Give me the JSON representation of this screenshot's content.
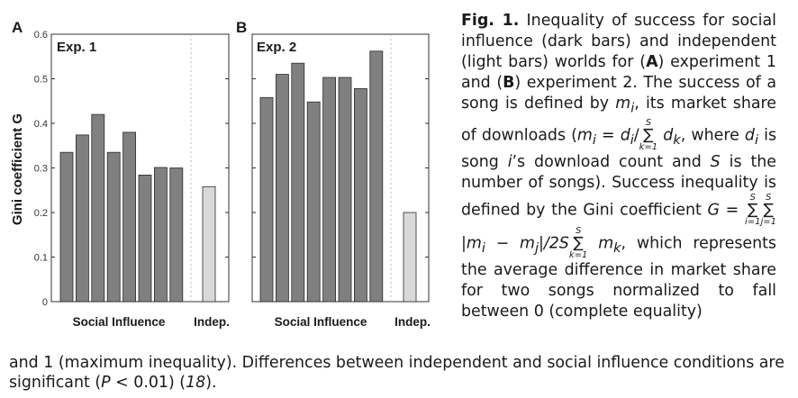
{
  "chart_data": [
    {
      "type": "bar",
      "panel_label": "A",
      "title": "Exp. 1",
      "ylabel": "Gini coefficient G",
      "ylim": [
        0,
        0.6
      ],
      "yticks": [
        0,
        0.1,
        0.2,
        0.3,
        0.4,
        0.5,
        0.6
      ],
      "ytick_labels": [
        "0",
        "0.1",
        "0.2",
        "0.3",
        "0.4",
        "0.5",
        "0.6"
      ],
      "groups": [
        {
          "name": "Social Influence",
          "color": "#808080",
          "values": [
            0.335,
            0.374,
            0.42,
            0.335,
            0.38,
            0.284,
            0.301,
            0.3
          ]
        },
        {
          "name": "Indep.",
          "color": "#d9d9d9",
          "values": [
            0.258
          ]
        }
      ]
    },
    {
      "type": "bar",
      "panel_label": "B",
      "title": "Exp. 2",
      "ylabel": "",
      "ylim": [
        0,
        0.6
      ],
      "yticks": [
        0,
        0.1,
        0.2,
        0.3,
        0.4,
        0.5,
        0.6
      ],
      "ytick_labels": [],
      "groups": [
        {
          "name": "Social Influence",
          "color": "#808080",
          "values": [
            0.458,
            0.51,
            0.535,
            0.448,
            0.503,
            0.503,
            0.478,
            0.562
          ]
        },
        {
          "name": "Indep.",
          "color": "#d9d9d9",
          "values": [
            0.2
          ]
        }
      ]
    }
  ],
  "caption": {
    "fig": "Fig. 1.",
    "t1": " Inequality of success for social influence (dark bars) and independent (light bars) worlds for (",
    "a": "A",
    "t2": ") experiment 1 and (",
    "b": "B",
    "t3": ") experiment 2. The success of a song is defined by ",
    "m_i": "m",
    "sub_i": "i",
    "t4": ", its market share of downloads (",
    "eq1_left": "m",
    "eq1_eq": " = d",
    "eq1_slash": "/",
    "sum": "∑",
    "sum_top": "S",
    "sum_bottom_k": "k=1",
    "d_k": " d",
    "sub_k": "k",
    "t5": ", where ",
    "d": "d",
    "t6": " is song ",
    "i": "i",
    "t7": "’s download count and ",
    "S": "S",
    "t8": " is the number of songs). Success inequality is defined by the Gini coefficient ",
    "G": "G",
    "eq2_eq": " = ",
    "sum_bottom_i": "i=1",
    "sum_bottom_j": "j=1",
    "eq2_abs": "|m",
    "eq2_minus": " − m",
    "sub_j": "j",
    "eq2_over": "|/2S",
    "m_k": " m",
    "t9": ", which represents the average difference in market share for two songs normalized to fall between 0 (complete equality)",
    "line_cont1": "and 1 (maximum inequality). Differences between independent and social influence conditions are",
    "line_cont2a": "significant (",
    "P": "P",
    "line_cont2b": " < 0.01) (",
    "ref": "18",
    "line_cont2c": ")."
  }
}
